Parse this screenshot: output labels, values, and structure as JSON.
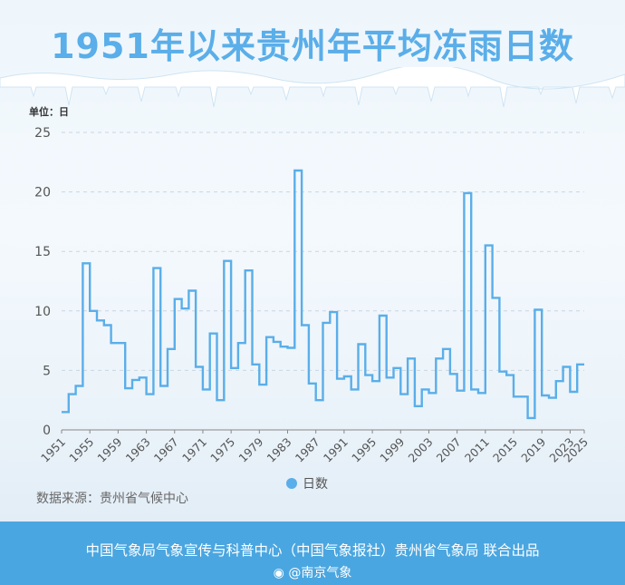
{
  "title": "1951年以来贵州年平均冻雨日数",
  "source": "数据来源：贵州省气候中心",
  "footer": {
    "publisher": "中国气象局气象宣传与科普中心（中国气象报社）贵州省气象局 联合出品",
    "weibo": "@南京气象"
  },
  "colors": {
    "title": "#5aaee9",
    "line": "#5aaee9",
    "footer_bg": "#4aa6e0"
  },
  "chart_data": {
    "type": "line",
    "step": true,
    "unit_label": "单位：日",
    "title": "",
    "xlabel": "",
    "ylabel": "",
    "ylim": [
      0,
      25
    ],
    "yticks": [
      0,
      5,
      10,
      15,
      20,
      25
    ],
    "xlim": [
      1951,
      2025
    ],
    "xticks": [
      1951,
      1955,
      1959,
      1963,
      1967,
      1971,
      1975,
      1979,
      1983,
      1987,
      1991,
      1995,
      1999,
      2003,
      2007,
      2011,
      2015,
      2019,
      2023,
      2025
    ],
    "grid": true,
    "legend_position": "bottom",
    "series": [
      {
        "name": "日数",
        "x": [
          1951,
          1952,
          1953,
          1954,
          1955,
          1956,
          1957,
          1958,
          1959,
          1960,
          1961,
          1962,
          1963,
          1964,
          1965,
          1966,
          1967,
          1968,
          1969,
          1970,
          1971,
          1972,
          1973,
          1974,
          1975,
          1976,
          1977,
          1978,
          1979,
          1980,
          1981,
          1982,
          1983,
          1984,
          1985,
          1986,
          1987,
          1988,
          1989,
          1990,
          1991,
          1992,
          1993,
          1994,
          1995,
          1996,
          1997,
          1998,
          1999,
          2000,
          2001,
          2002,
          2003,
          2004,
          2005,
          2006,
          2007,
          2008,
          2009,
          2010,
          2011,
          2012,
          2013,
          2014,
          2015,
          2016,
          2017,
          2018,
          2019,
          2020,
          2021,
          2022,
          2023,
          2024
        ],
        "values": [
          1.5,
          3.0,
          3.7,
          14.0,
          10.0,
          9.2,
          8.8,
          7.3,
          7.3,
          3.5,
          4.2,
          4.4,
          3.0,
          13.6,
          3.7,
          6.8,
          11.0,
          10.2,
          11.7,
          5.3,
          3.4,
          8.1,
          2.5,
          14.2,
          5.2,
          7.3,
          13.4,
          5.5,
          3.8,
          7.8,
          7.4,
          7.0,
          6.9,
          21.8,
          8.8,
          3.9,
          2.5,
          9.0,
          9.9,
          4.3,
          4.5,
          3.4,
          7.2,
          4.6,
          4.1,
          9.6,
          4.4,
          5.2,
          3.0,
          6.0,
          2.0,
          3.4,
          3.1,
          6.0,
          6.8,
          4.7,
          3.3,
          19.9,
          3.4,
          3.1,
          15.5,
          11.1,
          4.9,
          4.6,
          2.8,
          2.8,
          1.0,
          10.1,
          2.9,
          2.7,
          4.1,
          5.3,
          3.2,
          5.5
        ]
      }
    ]
  }
}
